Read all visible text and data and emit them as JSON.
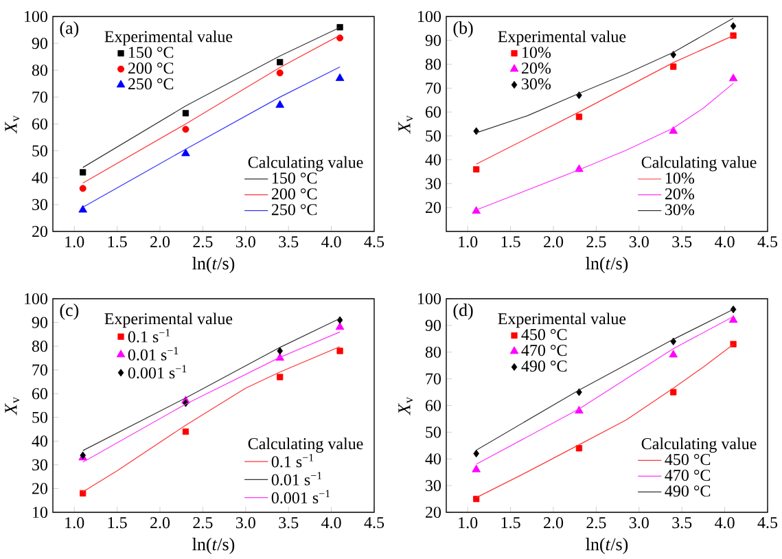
{
  "chart_data": [
    {
      "type": "scatter",
      "title": "(a)",
      "xlabel": "ln(*t*/s)",
      "ylabel": "*X*$_{v}$",
      "annotations": [
        "Experimental value",
        "Calculating value"
      ],
      "legend": "bottom right",
      "xlim": [
        0.75,
        4.5
      ],
      "ylim": [
        20,
        100
      ],
      "xticks": [
        {
          "value": 1.0,
          "label": "1.0"
        },
        {
          "value": 1.5,
          "label": "1.5"
        },
        {
          "value": 2.0,
          "label": "2.0"
        },
        {
          "value": 2.5,
          "label": "2.5"
        },
        {
          "value": 3.0,
          "label": "3.0"
        },
        {
          "value": 3.5,
          "label": "3.5"
        },
        {
          "value": 4.0,
          "label": "4.0"
        },
        {
          "value": 4.5,
          "label": "4.5"
        }
      ],
      "yticks": [
        20,
        30,
        40,
        50,
        60,
        70,
        80,
        90,
        100
      ],
      "x": [
        1.1,
        2.3,
        3.4,
        4.1
      ],
      "series": [
        {
          "name": "150 °C",
          "marker": "square",
          "color": "#000000",
          "values": [
            42,
            64,
            83,
            96
          ]
        },
        {
          "name": "200 °C",
          "marker": "circle",
          "color": "#ff0000",
          "values": [
            36,
            58,
            79,
            92
          ]
        },
        {
          "name": "250 °C",
          "marker": "triangle",
          "color": "#0000ff",
          "values": [
            28,
            49,
            67,
            77
          ]
        },
        {
          "name": "150 °C",
          "type": "line",
          "color": "#333333",
          "x": [
            1.1,
            2.3,
            3.4,
            4.1
          ],
          "values": [
            43.8,
            66.7,
            85.3,
            95.9
          ]
        },
        {
          "name": "200 °C",
          "type": "line",
          "color": "#ff3333",
          "x": [
            1.1,
            2.3,
            3.4,
            4.1
          ],
          "values": [
            38,
            60,
            81,
            93
          ]
        },
        {
          "name": "250 °C",
          "type": "line",
          "color": "#3333ff",
          "x": [
            1.1,
            2.3,
            3.4,
            4.1
          ],
          "values": [
            29,
            50.6,
            70,
            81.2
          ]
        }
      ]
    },
    {
      "type": "scatter",
      "title": "(b)",
      "xlabel": "ln(*t*/s)",
      "ylabel": "*X*$_{v}$",
      "annotations": [
        "Experimental value",
        "Calculating value"
      ],
      "legend": "bottom",
      "xlim": [
        0.75,
        4.5
      ],
      "ylim": [
        10,
        100
      ],
      "xticks": [
        {
          "value": 1.0,
          "label": "1.0"
        },
        {
          "value": 1.5,
          "label": "1.5"
        },
        {
          "value": 2.0,
          "label": "2.0"
        },
        {
          "value": 2.5,
          "label": "2.5"
        },
        {
          "value": 3.0,
          "label": "3.0"
        },
        {
          "value": 3.5,
          "label": "3.5"
        },
        {
          "value": 4.0,
          "label": "4.0"
        },
        {
          "value": 4.5,
          "label": "4.5"
        }
      ],
      "yticks": [
        20,
        30,
        40,
        50,
        60,
        70,
        80,
        90,
        100
      ],
      "x": [
        1.1,
        2.3,
        3.4,
        4.1
      ],
      "series": [
        {
          "name": "10%",
          "marker": "square",
          "color": "#ff0000",
          "values": [
            36,
            58,
            79,
            92
          ]
        },
        {
          "name": "20%",
          "marker": "triangle",
          "color": "#ff00ff",
          "values": [
            18.5,
            36,
            52,
            74
          ]
        },
        {
          "name": "30%",
          "marker": "diamond",
          "color": "#000000",
          "values": [
            52,
            67,
            84,
            96
          ]
        },
        {
          "name": "10%",
          "type": "line",
          "color": "#ff3333",
          "x": [
            1.1,
            2.3,
            3.4,
            4.1
          ],
          "values": [
            38.2,
            60,
            80.7,
            92
          ]
        },
        {
          "name": "20%",
          "type": "line",
          "color": "#ff33ff",
          "x": [
            1.1,
            2.3,
            2.85,
            3.4,
            3.75,
            4.1
          ],
          "values": [
            19,
            35.8,
            44,
            53.3,
            61.6,
            72
          ]
        },
        {
          "name": "30%",
          "type": "line",
          "color": "#333333",
          "x": [
            1.1,
            1.7,
            2.3,
            2.85,
            3.4,
            4.1
          ],
          "values": [
            51.3,
            58.5,
            67.8,
            76,
            85,
            99.3
          ]
        }
      ]
    },
    {
      "type": "scatter",
      "title": "(c)",
      "xlabel": "ln(*t*/s)",
      "ylabel": "*X*$_{v}$",
      "annotations": [
        "Experimental value",
        "Calculating value"
      ],
      "legend": "bottom right",
      "xlim": [
        0.75,
        4.5
      ],
      "ylim": [
        10,
        100
      ],
      "xticks": [
        {
          "value": 1.0,
          "label": "1.0"
        },
        {
          "value": 1.5,
          "label": "1.5"
        },
        {
          "value": 2.0,
          "label": "2.0"
        },
        {
          "value": 2.5,
          "label": "2.5"
        },
        {
          "value": 3.0,
          "label": "3.0"
        },
        {
          "value": 3.5,
          "label": "3.5"
        },
        {
          "value": 4.0,
          "label": "4.0"
        },
        {
          "value": 4.5,
          "label": "4.5"
        }
      ],
      "yticks": [
        10,
        20,
        30,
        40,
        50,
        60,
        70,
        80,
        90,
        100
      ],
      "x": [
        1.1,
        2.3,
        3.4,
        4.1
      ],
      "series": [
        {
          "name": "0.1 s$^{−1}$",
          "marker": "square",
          "color": "#ff0000",
          "values": [
            18,
            44,
            67,
            78
          ]
        },
        {
          "name": "0.01 s$^{−1}$",
          "marker": "triangle",
          "color": "#ff00ff",
          "values": [
            33,
            57,
            75,
            88
          ]
        },
        {
          "name": "0.001 s$^{−1}$",
          "marker": "diamond",
          "color": "#000000",
          "values": [
            34,
            56,
            78,
            91
          ]
        },
        {
          "name": "0.1 s$^{−1}$",
          "type": "line",
          "color": "#ff3333",
          "x": [
            1.1,
            1.5,
            2.3,
            3.0,
            3.4,
            4.1
          ],
          "values": [
            18.6,
            27.5,
            46.7,
            62.3,
            69.1,
            79.8
          ]
        },
        {
          "name": "0.01 s$^{−1}$",
          "type": "line",
          "color": "#333333",
          "x": [
            1.1,
            2.3,
            3.4,
            4.1
          ],
          "values": [
            36,
            58.2,
            79.5,
            91.7
          ]
        },
        {
          "name": "0.001 s$^{−1}$",
          "type": "line",
          "color": "#ff33ff",
          "x": [
            1.1,
            2.3,
            3.4,
            4.1
          ],
          "values": [
            31.1,
            55.6,
            75.3,
            86
          ]
        }
      ]
    },
    {
      "type": "scatter",
      "title": "(d)",
      "xlabel": "ln(*t*/s)",
      "ylabel": "*X*$_{v}$",
      "annotations": [
        "Experimental value",
        "Calculating value"
      ],
      "legend": "bottom right",
      "xlim": [
        0.75,
        4.5
      ],
      "ylim": [
        20,
        100
      ],
      "xticks": [
        {
          "value": 1.0,
          "label": "1.0"
        },
        {
          "value": 1.5,
          "label": "1.5"
        },
        {
          "value": 2.0,
          "label": "2.0"
        },
        {
          "value": 2.5,
          "label": "2.5"
        },
        {
          "value": 3.0,
          "label": "3.0"
        },
        {
          "value": 3.5,
          "label": "3.5"
        },
        {
          "value": 4.0,
          "label": "4.0"
        },
        {
          "value": 4.5,
          "label": "4.5"
        }
      ],
      "yticks": [
        20,
        30,
        40,
        50,
        60,
        70,
        80,
        90,
        100
      ],
      "x": [
        1.1,
        2.3,
        3.4,
        4.1
      ],
      "series": [
        {
          "name": "450 °C",
          "marker": "square",
          "color": "#ff0000",
          "values": [
            25,
            44,
            65,
            83
          ]
        },
        {
          "name": "470 °C",
          "marker": "triangle",
          "color": "#ff00ff",
          "values": [
            36,
            58,
            79,
            92
          ]
        },
        {
          "name": "490 °C",
          "marker": "diamond",
          "color": "#000000",
          "values": [
            42,
            65,
            84,
            96
          ]
        },
        {
          "name": "450 °C",
          "type": "line",
          "color": "#ff3333",
          "x": [
            1.1,
            1.7,
            2.3,
            2.85,
            3.4,
            3.75,
            4.1
          ],
          "values": [
            25.5,
            35.2,
            45.3,
            54.6,
            66.5,
            74.4,
            82.9
          ]
        },
        {
          "name": "470 °C",
          "type": "line",
          "color": "#ff33ff",
          "x": [
            1.1,
            2.3,
            3.4,
            4.1
          ],
          "values": [
            38,
            58.7,
            81.3,
            93.3
          ]
        },
        {
          "name": "490 °C",
          "type": "line",
          "color": "#333333",
          "x": [
            1.1,
            2.3,
            3.4,
            4.1
          ],
          "values": [
            43.3,
            65.8,
            84.8,
            96
          ]
        }
      ]
    }
  ]
}
